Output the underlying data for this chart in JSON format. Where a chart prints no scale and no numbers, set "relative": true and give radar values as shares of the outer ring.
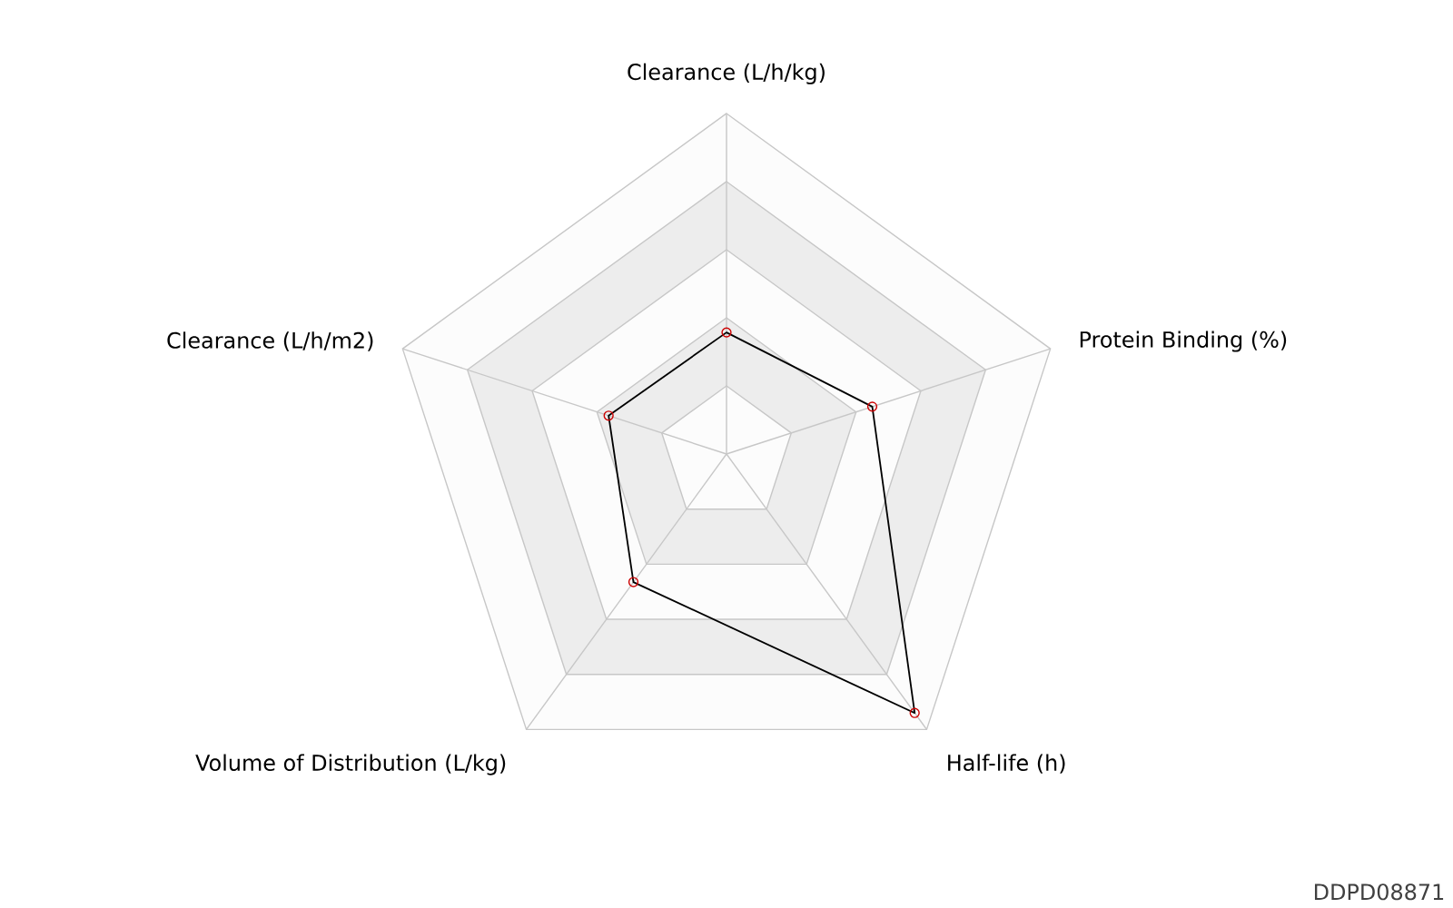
{
  "chart_data": {
    "type": "radar",
    "relative": true,
    "marker": "circle",
    "categories": [
      "Clearance (L/h/kg)",
      "Protein Binding (%)",
      "Half-life (h)",
      "Volume of Distribution (L/kg)",
      "Clearance (L/h/m2)"
    ],
    "series": [
      {
        "color": "#000000",
        "values": [
          0.357,
          0.45,
          0.94,
          0.465,
          0.364
        ]
      }
    ],
    "annotations": [
      "DDPD08871"
    ]
  }
}
